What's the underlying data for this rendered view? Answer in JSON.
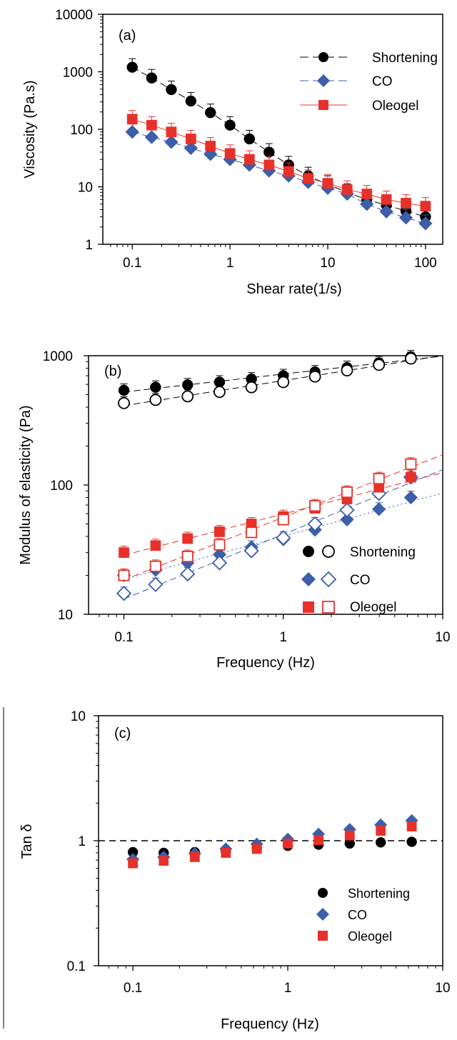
{
  "colors": {
    "shortening": "#000000",
    "co": "#3d5ea8",
    "oleogel": "#e8302a",
    "axis": "#000000"
  },
  "chart_data": [
    {
      "id": "a",
      "type": "line",
      "panel_label": "(a)",
      "title": "",
      "xlabel": "Shear rate(1/s)",
      "ylabel": "Viscosity (Pa.s)",
      "xscale": "log",
      "yscale": "log",
      "xlim": [
        0.05,
        150
      ],
      "ylim": [
        1,
        10000
      ],
      "xticks": [
        0.1,
        1,
        10,
        100
      ],
      "xtick_labels": [
        "0.1",
        "1",
        "10",
        "100"
      ],
      "yticks": [
        1,
        10,
        100,
        1000,
        10000
      ],
      "ytick_labels": [
        "1",
        "10",
        "100",
        "1000",
        "10000"
      ],
      "grid": false,
      "legend_position": "top-right",
      "x": [
        0.1,
        0.158,
        0.251,
        0.398,
        0.631,
        1,
        1.58,
        2.51,
        3.98,
        6.31,
        10,
        15.8,
        25.1,
        39.8,
        63.1,
        100
      ],
      "series": [
        {
          "name": "Shortening",
          "color": "#000000",
          "marker": "circle",
          "filled": true,
          "line": "dashed",
          "values": [
            1200,
            780,
            490,
            310,
            195,
            118,
            68,
            40,
            24,
            15.5,
            11,
            8,
            6,
            4.8,
            3.8,
            3
          ]
        },
        {
          "name": "CO",
          "color": "#3d5ea8",
          "marker": "diamond",
          "filled": true,
          "line": "dashed",
          "values": [
            90,
            73,
            60,
            47,
            37,
            30,
            24,
            19,
            15.5,
            12,
            9.5,
            7.5,
            5,
            3.7,
            2.9,
            2.3
          ]
        },
        {
          "name": "Oleogel",
          "color": "#e8302a",
          "marker": "square",
          "filled": true,
          "line": "solid",
          "values": [
            150,
            118,
            90,
            68,
            51,
            38,
            30,
            24,
            18.5,
            14,
            11.5,
            9,
            7.5,
            6,
            5.2,
            4.6
          ]
        }
      ]
    },
    {
      "id": "b",
      "type": "line",
      "panel_label": "(b)",
      "title": "",
      "xlabel": "Frequency (Hz)",
      "ylabel": "Modulus of elasticity (Pa)",
      "xscale": "log",
      "yscale": "log",
      "xlim": [
        0.06,
        10
      ],
      "ylim": [
        10,
        1000
      ],
      "xticks": [
        0.1,
        1,
        10
      ],
      "xtick_labels": [
        "0.1",
        "1",
        "10"
      ],
      "yticks": [
        10,
        100,
        1000
      ],
      "ytick_labels": [
        "10",
        "100",
        "1000"
      ],
      "grid": false,
      "legend_position": "bottom-right",
      "x": [
        0.1,
        0.158,
        0.251,
        0.398,
        0.631,
        1,
        1.58,
        2.51,
        3.98,
        6.31
      ],
      "series": [
        {
          "name": "Shortening",
          "color": "#000000",
          "marker": "circle",
          "filled": true,
          "values": [
            540,
            570,
            595,
            625,
            660,
            700,
            750,
            810,
            880,
            980
          ]
        },
        {
          "name": "Shortening",
          "color": "#000000",
          "marker": "circle",
          "filled": false,
          "values": [
            430,
            455,
            485,
            525,
            570,
            625,
            690,
            770,
            850,
            950
          ]
        },
        {
          "name": "CO",
          "color": "#3d5ea8",
          "marker": "diamond",
          "filled": true,
          "values": [
            20,
            22,
            25,
            29,
            33,
            38,
            45,
            54,
            65,
            80
          ]
        },
        {
          "name": "CO",
          "color": "#3d5ea8",
          "marker": "diamond",
          "filled": false,
          "values": [
            14.5,
            17,
            20.5,
            25,
            31,
            39,
            50,
            64,
            86,
            115
          ]
        },
        {
          "name": "Oleogel",
          "color": "#e8302a",
          "marker": "square",
          "filled": true,
          "values": [
            30,
            34,
            38.5,
            43.5,
            50,
            57,
            66,
            78,
            96,
            115
          ]
        },
        {
          "name": "Oleogel",
          "color": "#e8302a",
          "marker": "square",
          "filled": false,
          "values": [
            20,
            23.5,
            28,
            34.5,
            43,
            54,
            69,
            88,
            112,
            145
          ]
        }
      ]
    },
    {
      "id": "c",
      "type": "scatter",
      "panel_label": "(c)",
      "title": "",
      "xlabel": "Frequency (Hz)",
      "ylabel": "Tan δ",
      "xscale": "log",
      "yscale": "log",
      "xlim": [
        0.06,
        10
      ],
      "ylim": [
        0.1,
        10
      ],
      "xticks": [
        0.1,
        1,
        10
      ],
      "xtick_labels": [
        "0.1",
        "1",
        "10"
      ],
      "yticks": [
        0.1,
        1,
        10
      ],
      "ytick_labels": [
        "0.1",
        "1",
        "10"
      ],
      "grid": false,
      "legend_position": "bottom-right",
      "reference_line": 1,
      "x": [
        0.1,
        0.158,
        0.251,
        0.398,
        0.631,
        1,
        1.58,
        2.51,
        3.98,
        6.31
      ],
      "series": [
        {
          "name": "Shortening",
          "color": "#000000",
          "marker": "circle",
          "filled": true,
          "values": [
            0.81,
            0.8,
            0.81,
            0.82,
            0.87,
            0.91,
            0.93,
            0.95,
            0.97,
            0.98
          ]
        },
        {
          "name": "CO",
          "color": "#3d5ea8",
          "marker": "diamond",
          "filled": true,
          "values": [
            0.71,
            0.74,
            0.79,
            0.86,
            0.94,
            1.03,
            1.13,
            1.23,
            1.34,
            1.45
          ]
        },
        {
          "name": "Oleogel",
          "color": "#e8302a",
          "marker": "square",
          "filled": true,
          "values": [
            0.66,
            0.69,
            0.74,
            0.8,
            0.86,
            0.95,
            1.01,
            1.1,
            1.2,
            1.3
          ]
        }
      ]
    }
  ]
}
